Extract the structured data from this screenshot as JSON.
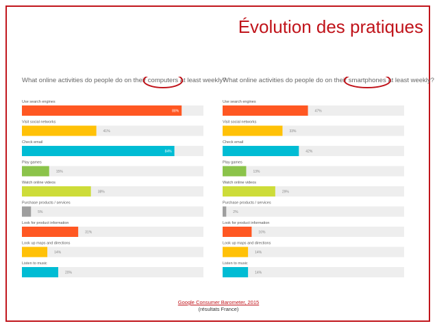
{
  "slide": {
    "title": "Évolution des pratiques"
  },
  "chart_data": [
    {
      "type": "bar",
      "title": "What online activities do people do on their computers at least weekly?",
      "categories": [
        "Use search engines",
        "Visit social networks",
        "Check email",
        "Play games",
        "Watch online videos",
        "Purchase products / services",
        "Look for product information",
        "Look up maps and directions",
        "Listen to music"
      ],
      "values": [
        88,
        41,
        84,
        15,
        38,
        5,
        31,
        14,
        20
      ],
      "data_labels": [
        "88%",
        "41%",
        "84%",
        "15%",
        "38%",
        "5%",
        "31%",
        "14%",
        "20%"
      ],
      "colors": [
        "#ff5722",
        "#ffc107",
        "#00bcd4",
        "#8bc34a",
        "#cddc39",
        "#9e9e9e",
        "#ff5722",
        "#ffc107",
        "#00bcd4"
      ],
      "ylim": [
        0,
        100
      ],
      "highlight_word": "computers"
    },
    {
      "type": "bar",
      "title": "What online activities do people do on their smartphones at least weekly?",
      "categories": [
        "Use search engines",
        "Visit social networks",
        "Check email",
        "Play games",
        "Watch online videos",
        "Purchase products / services",
        "Look for product information",
        "Look up maps and directions",
        "Listen to music"
      ],
      "values": [
        47,
        33,
        42,
        13,
        29,
        2,
        16,
        14,
        14
      ],
      "data_labels": [
        "47%",
        "33%",
        "42%",
        "13%",
        "29%",
        "2%",
        "16%",
        "14%",
        "14%"
      ],
      "colors": [
        "#ff5722",
        "#ffc107",
        "#00bcd4",
        "#8bc34a",
        "#cddc39",
        "#9e9e9e",
        "#ff5722",
        "#ffc107",
        "#00bcd4"
      ],
      "ylim": [
        0,
        100
      ],
      "highlight_word": "smartphones"
    }
  ],
  "footer": {
    "source": "Google Consumer Barometer, 2015",
    "note": "(résultats France)"
  },
  "colors": {
    "accent": "#c0131a",
    "track": "#eeeeee"
  }
}
